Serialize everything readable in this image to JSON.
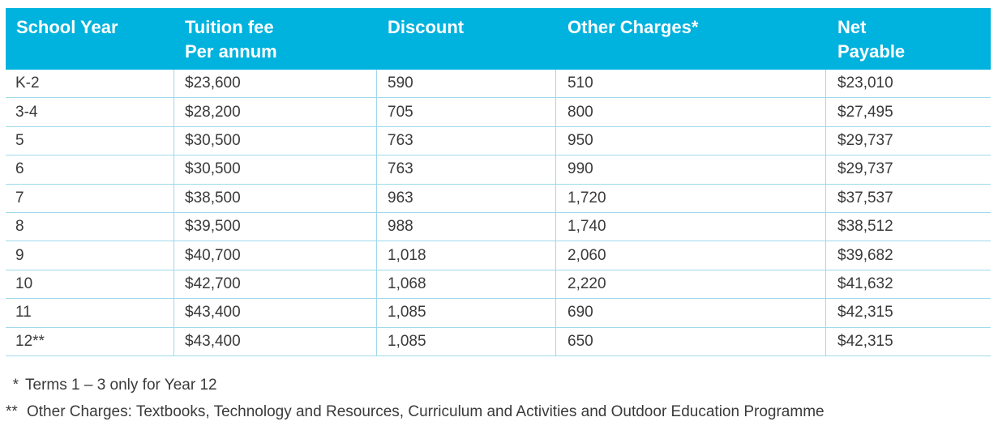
{
  "table": {
    "headers": {
      "school_year": "School Year",
      "tuition_line1": "Tuition fee",
      "tuition_line2": "Per annum",
      "discount": "Discount",
      "other_charges": "Other Charges*",
      "net_line1": "Net",
      "net_line2": "Payable"
    },
    "rows": [
      {
        "year": "K-2",
        "tuition": "$23,600",
        "discount": "590",
        "other": "510",
        "net": "$23,010"
      },
      {
        "year": "3-4",
        "tuition": "$28,200",
        "discount": "705",
        "other": "800",
        "net": "$27,495"
      },
      {
        "year": "5",
        "tuition": "$30,500",
        "discount": "763",
        "other": "950",
        "net": "$29,737"
      },
      {
        "year": "6",
        "tuition": "$30,500",
        "discount": "763",
        "other": "990",
        "net": "$29,737"
      },
      {
        "year": "7",
        "tuition": "$38,500",
        "discount": "963",
        "other": "1,720",
        "net": "$37,537"
      },
      {
        "year": "8",
        "tuition": "$39,500",
        "discount": "988",
        "other": "1,740",
        "net": "$38,512"
      },
      {
        "year": "9",
        "tuition": "$40,700",
        "discount": "1,018",
        "other": "2,060",
        "net": "$39,682"
      },
      {
        "year": "10",
        "tuition": "$42,700",
        "discount": "1,068",
        "other": "2,220",
        "net": "$41,632"
      },
      {
        "year": "11",
        "tuition": "$43,400",
        "discount": "1,085",
        "other": "690",
        "net": "$42,315"
      },
      {
        "year": "12**",
        "tuition": "$43,400",
        "discount": "1,085",
        "other": "650",
        "net": "$42,315"
      }
    ]
  },
  "notes": [
    {
      "mark": "*",
      "text": "Terms 1 – 3 only for Year 12"
    },
    {
      "mark": "**",
      "text": "Other Charges: Textbooks, Technology and Resources, Curriculum and Activities and Outdoor Education Programme"
    }
  ],
  "colors": {
    "header_bg": "#00b2de",
    "header_text": "#ffffff",
    "row_border": "#9fd9ec",
    "body_text": "#3a3a3a"
  }
}
